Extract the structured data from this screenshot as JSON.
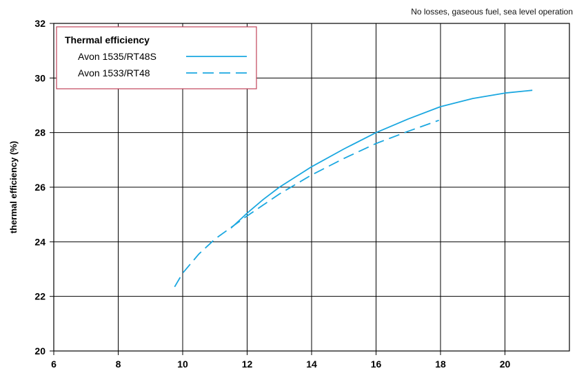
{
  "chart_data": {
    "type": "line",
    "title": "",
    "annotation": "No losses, gaseous fuel, sea level operation",
    "xlabel": "",
    "ylabel": "thermal efficiency (%)",
    "xlim": [
      6,
      22
    ],
    "ylim": [
      20,
      32
    ],
    "xticks": [
      6,
      8,
      10,
      12,
      14,
      16,
      18,
      20
    ],
    "yticks": [
      20,
      22,
      24,
      26,
      28,
      30,
      32
    ],
    "grid": true,
    "legend": {
      "title": "Thermal efficiency",
      "placement": "top-left"
    },
    "series": [
      {
        "name": "Avon 1535/RT48S",
        "style": "solid",
        "color": "#1aa7e0",
        "points": [
          [
            11.5,
            24.5
          ],
          [
            12.0,
            25.05
          ],
          [
            12.5,
            25.55
          ],
          [
            13.0,
            26.0
          ],
          [
            14.0,
            26.75
          ],
          [
            15.0,
            27.4
          ],
          [
            16.0,
            28.0
          ],
          [
            17.0,
            28.5
          ],
          [
            18.0,
            28.95
          ],
          [
            19.0,
            29.25
          ],
          [
            20.0,
            29.45
          ],
          [
            20.85,
            29.55
          ]
        ]
      },
      {
        "name": "Avon 1533/RT48",
        "style": "dashed",
        "color": "#1aa7e0",
        "points": [
          [
            9.75,
            22.35
          ],
          [
            10.0,
            22.85
          ],
          [
            10.5,
            23.55
          ],
          [
            11.0,
            24.1
          ],
          [
            12.0,
            24.95
          ],
          [
            13.0,
            25.75
          ],
          [
            14.0,
            26.45
          ],
          [
            15.0,
            27.05
          ],
          [
            16.0,
            27.6
          ],
          [
            17.0,
            28.05
          ],
          [
            17.95,
            28.45
          ]
        ]
      }
    ]
  }
}
